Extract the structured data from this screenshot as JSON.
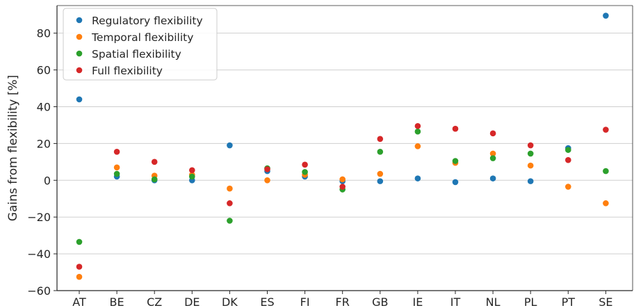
{
  "chart_data": {
    "type": "scatter",
    "title": "",
    "xlabel": "",
    "ylabel": "Gains from flexibility [%]",
    "categories": [
      "AT",
      "BE",
      "CZ",
      "DE",
      "DK",
      "ES",
      "FI",
      "FR",
      "GB",
      "IE",
      "IT",
      "NL",
      "PL",
      "PT",
      "SE"
    ],
    "ylim": [
      -60,
      95
    ],
    "yticks": [
      -60,
      -40,
      -20,
      0,
      20,
      40,
      60,
      80
    ],
    "ytick_labels": [
      "−60",
      "−40",
      "−20",
      "0",
      "20",
      "40",
      "60",
      "80"
    ],
    "grid": "horizontal",
    "legend_position": "top-left",
    "series": [
      {
        "name": "Regulatory flexibility",
        "color": "#1f77b4",
        "values": [
          44,
          2,
          0,
          0,
          19,
          5,
          2,
          -0.5,
          -0.5,
          1,
          -1,
          1,
          -0.5,
          17.5,
          89.5
        ]
      },
      {
        "name": "Temporal flexibility",
        "color": "#ff7f0e",
        "values": [
          -52.5,
          7,
          2.5,
          3,
          -4.5,
          0,
          3,
          0.5,
          3.5,
          18.5,
          9.5,
          14.5,
          8,
          -3.5,
          -12.5
        ]
      },
      {
        "name": "Spatial flexibility",
        "color": "#2ca02c",
        "values": [
          -33.5,
          3.5,
          0.5,
          2,
          -22,
          6.5,
          4.5,
          -5,
          15.5,
          26.5,
          10.5,
          12,
          14.5,
          16.5,
          5
        ]
      },
      {
        "name": "Full flexibility",
        "color": "#d62728",
        "values": [
          -47,
          15.5,
          10,
          5.5,
          -12.5,
          6,
          8.5,
          -3.5,
          22.5,
          29.5,
          28,
          25.5,
          19,
          11,
          27.5
        ]
      }
    ]
  }
}
